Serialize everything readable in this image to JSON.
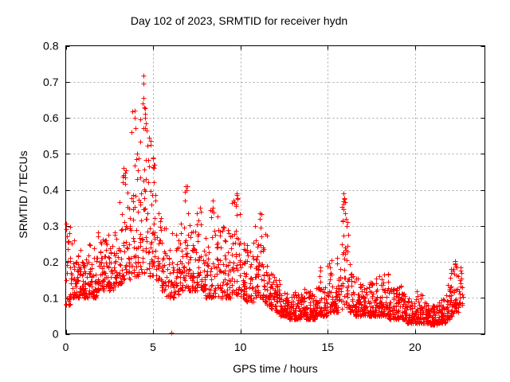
{
  "title": "Day 102 of 2023, SRMTID for receiver hydn",
  "chart_data": {
    "type": "scatter",
    "title": "Day 102 of 2023, SRMTID for receiver hydn",
    "xlabel": "GPS time / hours",
    "ylabel": "SRMTID / TECUs",
    "xlim": [
      0,
      24
    ],
    "ylim": [
      0,
      0.8
    ],
    "x_ticks": [
      0,
      5,
      10,
      15,
      20
    ],
    "x_tick_labels": [
      "0",
      "5",
      "10",
      "15",
      "20"
    ],
    "y_ticks": [
      0,
      0.1,
      0.2,
      0.3,
      0.4,
      0.5,
      0.6,
      0.7,
      0.8
    ],
    "y_tick_labels": [
      "0",
      "0.1",
      "0.2",
      "0.3",
      "0.4",
      "0.5",
      "0.6",
      "0.7",
      "0.8"
    ],
    "grid": true,
    "legend": "none",
    "marker": "plus",
    "marker_color": "#ff0000",
    "grid_color": "#a8a8a8",
    "axis_color": "#000000",
    "background_color": "#ffffff",
    "bin_width_hours": 0.25,
    "bins_note": "density envelope per 0.25h bin starting at t=0: [y_low, y_high, point_count]; scatter is dense near y_low with sparse tail toward y_high",
    "bins": [
      [
        0.08,
        0.31,
        26
      ],
      [
        0.1,
        0.27,
        26
      ],
      [
        0.1,
        0.23,
        26
      ],
      [
        0.11,
        0.24,
        26
      ],
      [
        0.1,
        0.22,
        26
      ],
      [
        0.11,
        0.25,
        26
      ],
      [
        0.1,
        0.26,
        26
      ],
      [
        0.12,
        0.3,
        26
      ],
      [
        0.12,
        0.28,
        26
      ],
      [
        0.13,
        0.28,
        26
      ],
      [
        0.12,
        0.26,
        24
      ],
      [
        0.13,
        0.31,
        24
      ],
      [
        0.14,
        0.38,
        22
      ],
      [
        0.15,
        0.46,
        22
      ],
      [
        0.15,
        0.4,
        22
      ],
      [
        0.16,
        0.62,
        22
      ],
      [
        0.16,
        0.52,
        22
      ],
      [
        0.17,
        0.7,
        24
      ],
      [
        0.17,
        0.64,
        24
      ],
      [
        0.16,
        0.57,
        22
      ],
      [
        0.15,
        0.48,
        22
      ],
      [
        0.13,
        0.35,
        22
      ],
      [
        0.12,
        0.3,
        22
      ],
      [
        0.1,
        0.25,
        22
      ],
      [
        0.1,
        0.28,
        22
      ],
      [
        0.11,
        0.3,
        22
      ],
      [
        0.12,
        0.35,
        22
      ],
      [
        0.13,
        0.41,
        22
      ],
      [
        0.12,
        0.32,
        22
      ],
      [
        0.12,
        0.3,
        22
      ],
      [
        0.13,
        0.35,
        22
      ],
      [
        0.12,
        0.33,
        22
      ],
      [
        0.1,
        0.28,
        22
      ],
      [
        0.1,
        0.35,
        22
      ],
      [
        0.1,
        0.33,
        22
      ],
      [
        0.1,
        0.3,
        22
      ],
      [
        0.1,
        0.31,
        22
      ],
      [
        0.1,
        0.3,
        22
      ],
      [
        0.11,
        0.38,
        24
      ],
      [
        0.11,
        0.39,
        24
      ],
      [
        0.1,
        0.28,
        22
      ],
      [
        0.09,
        0.25,
        22
      ],
      [
        0.09,
        0.26,
        22
      ],
      [
        0.1,
        0.3,
        22
      ],
      [
        0.1,
        0.34,
        22
      ],
      [
        0.09,
        0.28,
        22
      ],
      [
        0.08,
        0.2,
        24
      ],
      [
        0.07,
        0.17,
        24
      ],
      [
        0.06,
        0.15,
        26
      ],
      [
        0.05,
        0.13,
        26
      ],
      [
        0.05,
        0.12,
        28
      ],
      [
        0.04,
        0.11,
        28
      ],
      [
        0.04,
        0.12,
        28
      ],
      [
        0.04,
        0.11,
        28
      ],
      [
        0.05,
        0.13,
        28
      ],
      [
        0.04,
        0.12,
        28
      ],
      [
        0.04,
        0.11,
        28
      ],
      [
        0.05,
        0.13,
        28
      ],
      [
        0.05,
        0.18,
        26
      ],
      [
        0.05,
        0.14,
        26
      ],
      [
        0.06,
        0.2,
        26
      ],
      [
        0.06,
        0.16,
        26
      ],
      [
        0.06,
        0.25,
        24
      ],
      [
        0.07,
        0.38,
        24
      ],
      [
        0.07,
        0.33,
        24
      ],
      [
        0.06,
        0.2,
        24
      ],
      [
        0.05,
        0.16,
        26
      ],
      [
        0.05,
        0.14,
        26
      ],
      [
        0.05,
        0.13,
        28
      ],
      [
        0.05,
        0.15,
        28
      ],
      [
        0.05,
        0.15,
        28
      ],
      [
        0.05,
        0.16,
        28
      ],
      [
        0.05,
        0.17,
        28
      ],
      [
        0.05,
        0.17,
        28
      ],
      [
        0.04,
        0.13,
        28
      ],
      [
        0.04,
        0.13,
        28
      ],
      [
        0.04,
        0.14,
        28
      ],
      [
        0.04,
        0.12,
        28
      ],
      [
        0.03,
        0.1,
        28
      ],
      [
        0.03,
        0.1,
        28
      ],
      [
        0.03,
        0.12,
        28
      ],
      [
        0.03,
        0.11,
        28
      ],
      [
        0.03,
        0.09,
        28
      ],
      [
        0.025,
        0.08,
        28
      ],
      [
        0.025,
        0.08,
        28
      ],
      [
        0.03,
        0.09,
        28
      ],
      [
        0.03,
        0.1,
        28
      ],
      [
        0.04,
        0.14,
        26
      ],
      [
        0.05,
        0.2,
        26
      ],
      [
        0.06,
        0.2,
        24
      ],
      [
        0.08,
        0.19,
        18
      ]
    ],
    "feature_points": [
      [
        0.02,
        0.305
      ],
      [
        0.04,
        0.29
      ],
      [
        0.06,
        0.27
      ],
      [
        3.28,
        0.42
      ],
      [
        3.3,
        0.46
      ],
      [
        3.32,
        0.44
      ],
      [
        3.93,
        0.62
      ],
      [
        3.95,
        0.6
      ],
      [
        4.4,
        0.64
      ],
      [
        4.43,
        0.695
      ],
      [
        4.45,
        0.717
      ],
      [
        4.47,
        0.655
      ],
      [
        4.52,
        0.6
      ],
      [
        4.55,
        0.61
      ],
      [
        4.6,
        0.585
      ],
      [
        4.62,
        0.565
      ],
      [
        4.75,
        0.545
      ],
      [
        4.85,
        0.525
      ],
      [
        5.0,
        0.49
      ],
      [
        5.05,
        0.46
      ],
      [
        6.05,
        0.004
      ],
      [
        6.83,
        0.395
      ],
      [
        6.85,
        0.41
      ],
      [
        7.7,
        0.35
      ],
      [
        7.72,
        0.34
      ],
      [
        8.4,
        0.37
      ],
      [
        8.42,
        0.35
      ],
      [
        9.75,
        0.36
      ],
      [
        9.78,
        0.39
      ],
      [
        9.8,
        0.385
      ],
      [
        9.83,
        0.375
      ],
      [
        11.1,
        0.335
      ],
      [
        11.12,
        0.32
      ],
      [
        14.6,
        0.185
      ],
      [
        15.2,
        0.205
      ],
      [
        15.9,
        0.345
      ],
      [
        15.92,
        0.39
      ],
      [
        15.95,
        0.375
      ],
      [
        15.97,
        0.365
      ],
      [
        16.0,
        0.335
      ],
      [
        16.05,
        0.32
      ],
      [
        22.28,
        0.196
      ],
      [
        22.3,
        0.202
      ],
      [
        22.35,
        0.19
      ],
      [
        22.6,
        0.185
      ],
      [
        22.65,
        0.17
      ]
    ],
    "y_max_point": [
      4.45,
      0.717
    ],
    "series": [
      {
        "name": "SRMTID",
        "color": "#ff0000"
      }
    ]
  }
}
